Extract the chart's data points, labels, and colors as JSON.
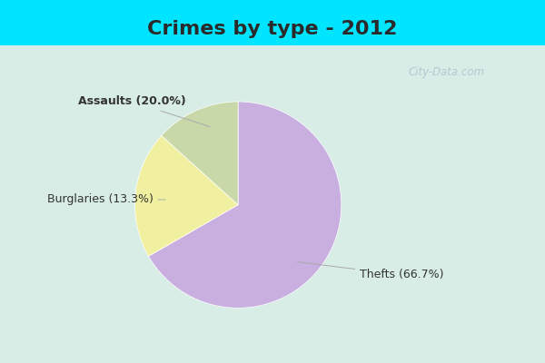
{
  "title": "Crimes by type - 2012",
  "slices": [
    {
      "label": "Thefts (66.7%)",
      "value": 66.7,
      "color": "#c9aee0"
    },
    {
      "label": "Assaults (20.0%)",
      "value": 20.0,
      "color": "#f0f0a0"
    },
    {
      "label": "Burglaries (13.3%)",
      "value": 13.3,
      "color": "#c8d8a8"
    }
  ],
  "background_cyan": "#00e5ff",
  "background_inner_tl": "#cce8e0",
  "background_inner_br": "#e8eef8",
  "title_fontsize": 16,
  "label_fontsize": 9,
  "startangle": 90,
  "watermark": "City-Data.com",
  "title_color": "#2a2a2a"
}
